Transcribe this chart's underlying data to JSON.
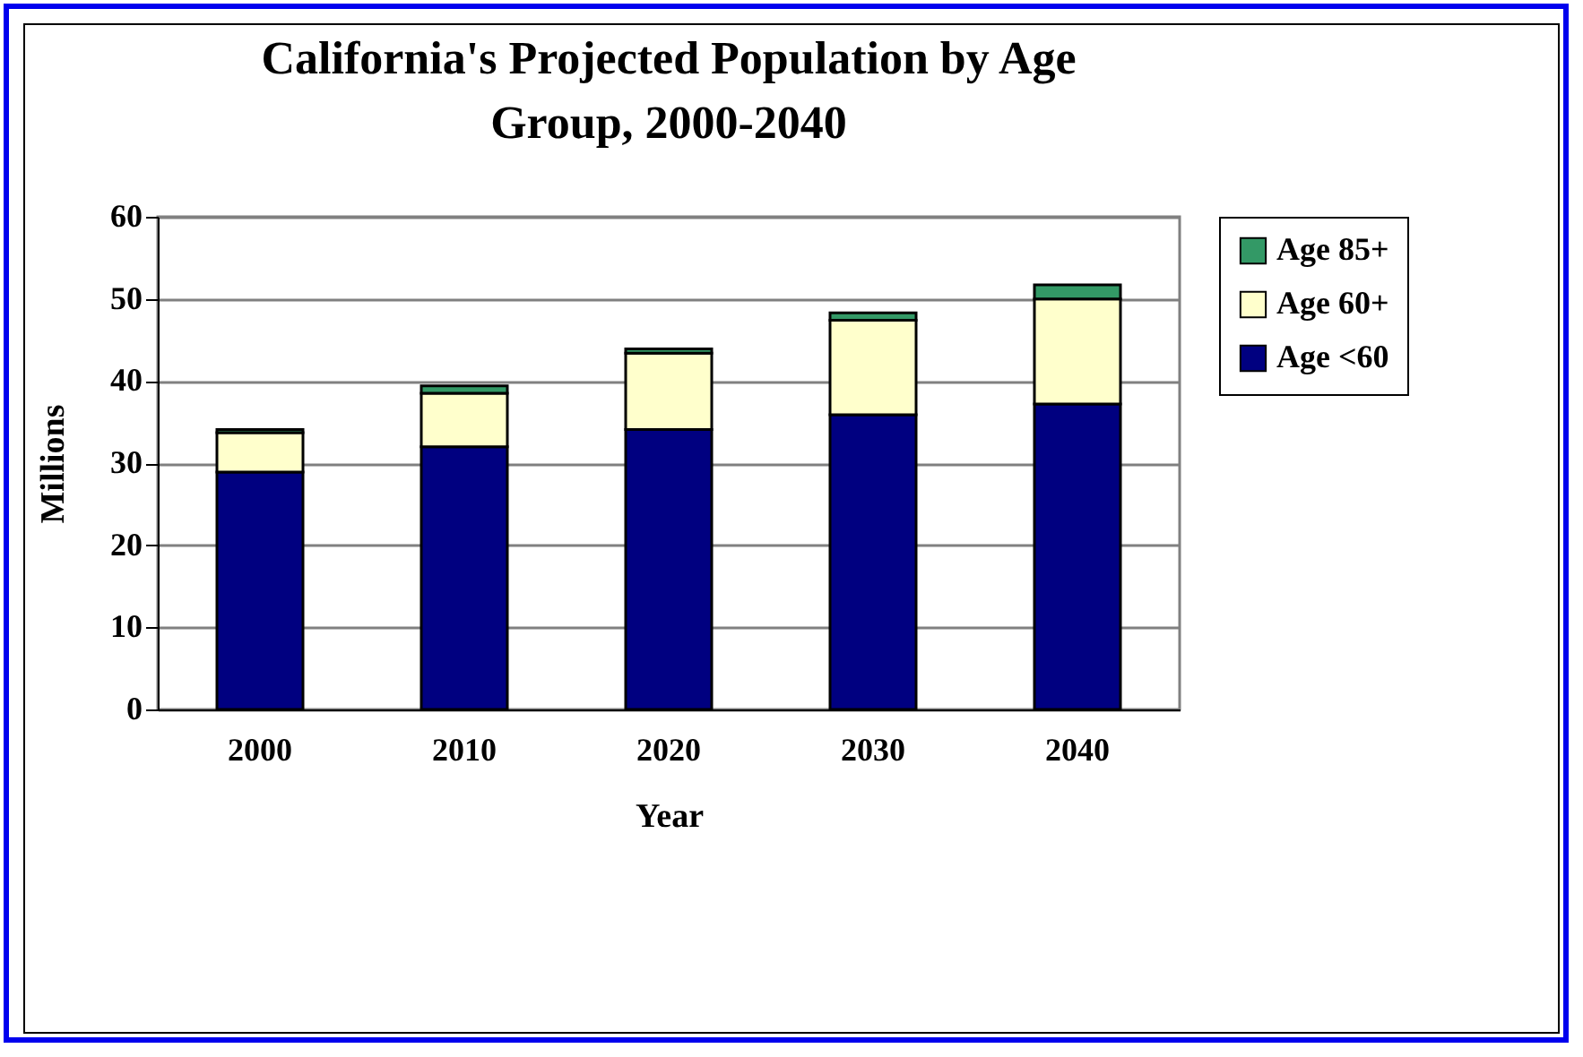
{
  "chart_data": {
    "type": "bar",
    "title": "California's Projected Population by Age Group, 2000-2040",
    "xlabel": "Year",
    "ylabel": "Millions",
    "categories": [
      "2000",
      "2010",
      "2020",
      "2030",
      "2040"
    ],
    "stacked": true,
    "series": [
      {
        "name": "Age <60",
        "color": "#000080",
        "values": [
          28.9,
          32.0,
          34.1,
          35.9,
          37.2
        ]
      },
      {
        "name": "Age 60+",
        "color": "#ffffcc",
        "values": [
          4.8,
          6.5,
          9.3,
          11.5,
          12.8
        ]
      },
      {
        "name": "Age 85+",
        "color": "#339966",
        "values": [
          0.4,
          0.9,
          0.5,
          0.9,
          1.7
        ]
      }
    ],
    "ylim": [
      0,
      60
    ],
    "yticks": [
      0,
      10,
      20,
      30,
      40,
      50,
      60
    ],
    "grid": "y",
    "legend": "right"
  }
}
